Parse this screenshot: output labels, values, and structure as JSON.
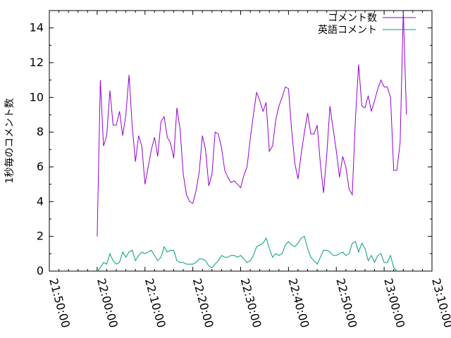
{
  "chart_data": {
    "type": "line",
    "title": "",
    "xlabel": "",
    "ylabel": "1秒毎のコメント数",
    "xlim": [
      "21:50:00",
      "23:10:00"
    ],
    "ylim": [
      0,
      15
    ],
    "x_ticks": [
      "21:50:00",
      "22:00:00",
      "22:10:00",
      "22:20:00",
      "22:30:00",
      "22:40:00",
      "22:50:00",
      "23:00:00",
      "23:10:00"
    ],
    "y_ticks": [
      0,
      2,
      4,
      6,
      8,
      10,
      12,
      14
    ],
    "grid": false,
    "legend_position": "top-right",
    "series": [
      {
        "name": "コメント数",
        "color": "#9400d3",
        "points": [
          [
            "22:00:00",
            2.0
          ],
          [
            "22:00:40",
            11.0
          ],
          [
            "22:01:20",
            7.2
          ],
          [
            "22:02:00",
            7.8
          ],
          [
            "22:02:40",
            10.4
          ],
          [
            "22:03:20",
            8.4
          ],
          [
            "22:04:00",
            8.4
          ],
          [
            "22:04:40",
            9.2
          ],
          [
            "22:05:20",
            7.8
          ],
          [
            "22:06:00",
            9.0
          ],
          [
            "22:06:40",
            11.3
          ],
          [
            "22:07:20",
            8.3
          ],
          [
            "22:08:00",
            6.3
          ],
          [
            "22:08:40",
            7.8
          ],
          [
            "22:09:20",
            7.2
          ],
          [
            "22:10:00",
            5.0
          ],
          [
            "22:10:40",
            6.0
          ],
          [
            "22:11:20",
            7.0
          ],
          [
            "22:12:00",
            7.7
          ],
          [
            "22:12:40",
            6.6
          ],
          [
            "22:13:20",
            8.6
          ],
          [
            "22:14:00",
            8.9
          ],
          [
            "22:14:40",
            7.7
          ],
          [
            "22:15:20",
            7.4
          ],
          [
            "22:16:00",
            6.5
          ],
          [
            "22:16:40",
            9.4
          ],
          [
            "22:17:20",
            8.2
          ],
          [
            "22:18:00",
            5.6
          ],
          [
            "22:18:40",
            4.4
          ],
          [
            "22:19:20",
            4.0
          ],
          [
            "22:20:00",
            3.9
          ],
          [
            "22:20:40",
            4.6
          ],
          [
            "22:21:20",
            5.7
          ],
          [
            "22:22:00",
            7.8
          ],
          [
            "22:22:40",
            7.0
          ],
          [
            "22:23:20",
            4.9
          ],
          [
            "22:24:00",
            5.6
          ],
          [
            "22:24:40",
            8.0
          ],
          [
            "22:25:20",
            7.9
          ],
          [
            "22:26:00",
            7.1
          ],
          [
            "22:26:40",
            5.8
          ],
          [
            "22:27:20",
            5.4
          ],
          [
            "22:28:00",
            5.1
          ],
          [
            "22:28:40",
            5.2
          ],
          [
            "22:29:20",
            5.0
          ],
          [
            "22:30:00",
            4.8
          ],
          [
            "22:30:40",
            5.5
          ],
          [
            "22:31:20",
            6.0
          ],
          [
            "22:32:00",
            7.6
          ],
          [
            "22:32:40",
            9.0
          ],
          [
            "22:33:20",
            10.3
          ],
          [
            "22:34:00",
            9.8
          ],
          [
            "22:34:40",
            9.2
          ],
          [
            "22:35:20",
            9.7
          ],
          [
            "22:36:00",
            6.9
          ],
          [
            "22:36:40",
            7.2
          ],
          [
            "22:37:20",
            8.7
          ],
          [
            "22:38:00",
            9.5
          ],
          [
            "22:38:40",
            10.0
          ],
          [
            "22:39:20",
            10.6
          ],
          [
            "22:40:00",
            10.5
          ],
          [
            "22:40:40",
            8.1
          ],
          [
            "22:41:20",
            6.2
          ],
          [
            "22:42:00",
            5.3
          ],
          [
            "22:42:40",
            6.8
          ],
          [
            "22:43:20",
            8.0
          ],
          [
            "22:44:00",
            9.1
          ],
          [
            "22:44:40",
            7.9
          ],
          [
            "22:45:20",
            7.9
          ],
          [
            "22:46:00",
            8.4
          ],
          [
            "22:46:40",
            6.2
          ],
          [
            "22:47:20",
            4.5
          ],
          [
            "22:48:00",
            6.7
          ],
          [
            "22:48:40",
            9.5
          ],
          [
            "22:49:20",
            8.2
          ],
          [
            "22:50:00",
            6.9
          ],
          [
            "22:50:40",
            5.4
          ],
          [
            "22:51:20",
            6.6
          ],
          [
            "22:52:00",
            6.0
          ],
          [
            "22:52:40",
            4.7
          ],
          [
            "22:53:20",
            4.4
          ],
          [
            "22:54:00",
            8.8
          ],
          [
            "22:54:40",
            11.9
          ],
          [
            "22:55:20",
            9.5
          ],
          [
            "22:56:00",
            9.4
          ],
          [
            "22:56:40",
            10.1
          ],
          [
            "22:57:20",
            9.2
          ],
          [
            "22:58:00",
            9.8
          ],
          [
            "22:58:40",
            10.5
          ],
          [
            "22:59:20",
            11.0
          ],
          [
            "23:00:00",
            10.6
          ],
          [
            "23:00:40",
            10.6
          ],
          [
            "23:01:20",
            10.0
          ],
          [
            "23:02:00",
            5.8
          ],
          [
            "23:02:40",
            5.8
          ],
          [
            "23:03:20",
            7.4
          ],
          [
            "23:04:00",
            15.0
          ],
          [
            "23:04:40",
            9.0
          ]
        ]
      },
      {
        "name": "英語コメント",
        "color": "#009e73",
        "points": [
          [
            "22:00:00",
            0.0
          ],
          [
            "22:00:40",
            0.2
          ],
          [
            "22:01:20",
            0.5
          ],
          [
            "22:02:00",
            0.4
          ],
          [
            "22:02:40",
            1.0
          ],
          [
            "22:03:20",
            0.6
          ],
          [
            "22:04:00",
            0.4
          ],
          [
            "22:04:40",
            0.5
          ],
          [
            "22:05:20",
            1.1
          ],
          [
            "22:06:00",
            0.8
          ],
          [
            "22:06:40",
            1.1
          ],
          [
            "22:07:20",
            1.2
          ],
          [
            "22:08:00",
            0.6
          ],
          [
            "22:08:40",
            0.9
          ],
          [
            "22:09:20",
            1.1
          ],
          [
            "22:10:00",
            1.0
          ],
          [
            "22:10:40",
            1.1
          ],
          [
            "22:11:20",
            1.2
          ],
          [
            "22:12:00",
            0.9
          ],
          [
            "22:12:40",
            0.6
          ],
          [
            "22:13:20",
            0.8
          ],
          [
            "22:14:00",
            1.4
          ],
          [
            "22:14:40",
            1.1
          ],
          [
            "22:15:20",
            1.2
          ],
          [
            "22:16:00",
            1.2
          ],
          [
            "22:16:40",
            0.6
          ],
          [
            "22:17:20",
            0.5
          ],
          [
            "22:18:00",
            0.5
          ],
          [
            "22:18:40",
            0.4
          ],
          [
            "22:19:20",
            0.4
          ],
          [
            "22:20:00",
            0.4
          ],
          [
            "22:20:40",
            0.5
          ],
          [
            "22:21:20",
            0.7
          ],
          [
            "22:22:00",
            0.7
          ],
          [
            "22:22:40",
            0.6
          ],
          [
            "22:23:20",
            0.3
          ],
          [
            "22:24:00",
            0.2
          ],
          [
            "22:24:40",
            0.4
          ],
          [
            "22:25:20",
            0.6
          ],
          [
            "22:26:00",
            0.9
          ],
          [
            "22:26:40",
            0.8
          ],
          [
            "22:27:20",
            0.8
          ],
          [
            "22:28:00",
            0.9
          ],
          [
            "22:28:40",
            0.9
          ],
          [
            "22:29:20",
            0.8
          ],
          [
            "22:30:00",
            0.9
          ],
          [
            "22:30:40",
            0.7
          ],
          [
            "22:31:20",
            0.5
          ],
          [
            "22:32:00",
            0.6
          ],
          [
            "22:32:40",
            0.9
          ],
          [
            "22:33:20",
            1.4
          ],
          [
            "22:34:00",
            1.5
          ],
          [
            "22:34:40",
            1.6
          ],
          [
            "22:35:20",
            1.9
          ],
          [
            "22:36:00",
            1.3
          ],
          [
            "22:36:40",
            0.8
          ],
          [
            "22:37:20",
            1.0
          ],
          [
            "22:38:00",
            0.9
          ],
          [
            "22:38:40",
            1.0
          ],
          [
            "22:39:20",
            1.5
          ],
          [
            "22:40:00",
            1.7
          ],
          [
            "22:40:40",
            1.5
          ],
          [
            "22:41:20",
            1.4
          ],
          [
            "22:42:00",
            1.6
          ],
          [
            "22:42:40",
            1.9
          ],
          [
            "22:43:20",
            2.0
          ],
          [
            "22:44:00",
            1.3
          ],
          [
            "22:44:40",
            0.8
          ],
          [
            "22:45:20",
            0.6
          ],
          [
            "22:46:00",
            0.4
          ],
          [
            "22:46:40",
            0.8
          ],
          [
            "22:47:20",
            1.2
          ],
          [
            "22:48:00",
            1.2
          ],
          [
            "22:48:40",
            1.1
          ],
          [
            "22:49:20",
            0.9
          ],
          [
            "22:50:00",
            0.9
          ],
          [
            "22:50:40",
            1.0
          ],
          [
            "22:51:20",
            1.1
          ],
          [
            "22:52:00",
            0.9
          ],
          [
            "22:52:40",
            1.0
          ],
          [
            "22:53:20",
            1.6
          ],
          [
            "22:54:00",
            1.7
          ],
          [
            "22:54:40",
            1.1
          ],
          [
            "22:55:20",
            1.6
          ],
          [
            "22:56:00",
            1.3
          ],
          [
            "22:56:40",
            0.6
          ],
          [
            "22:57:20",
            0.9
          ],
          [
            "22:58:00",
            0.5
          ],
          [
            "22:58:40",
            0.9
          ],
          [
            "22:59:20",
            1.0
          ],
          [
            "23:00:00",
            0.5
          ],
          [
            "23:00:40",
            0.5
          ],
          [
            "23:01:20",
            0.9
          ],
          [
            "23:02:00",
            0.2
          ],
          [
            "23:02:40",
            0.0
          ]
        ]
      }
    ]
  }
}
